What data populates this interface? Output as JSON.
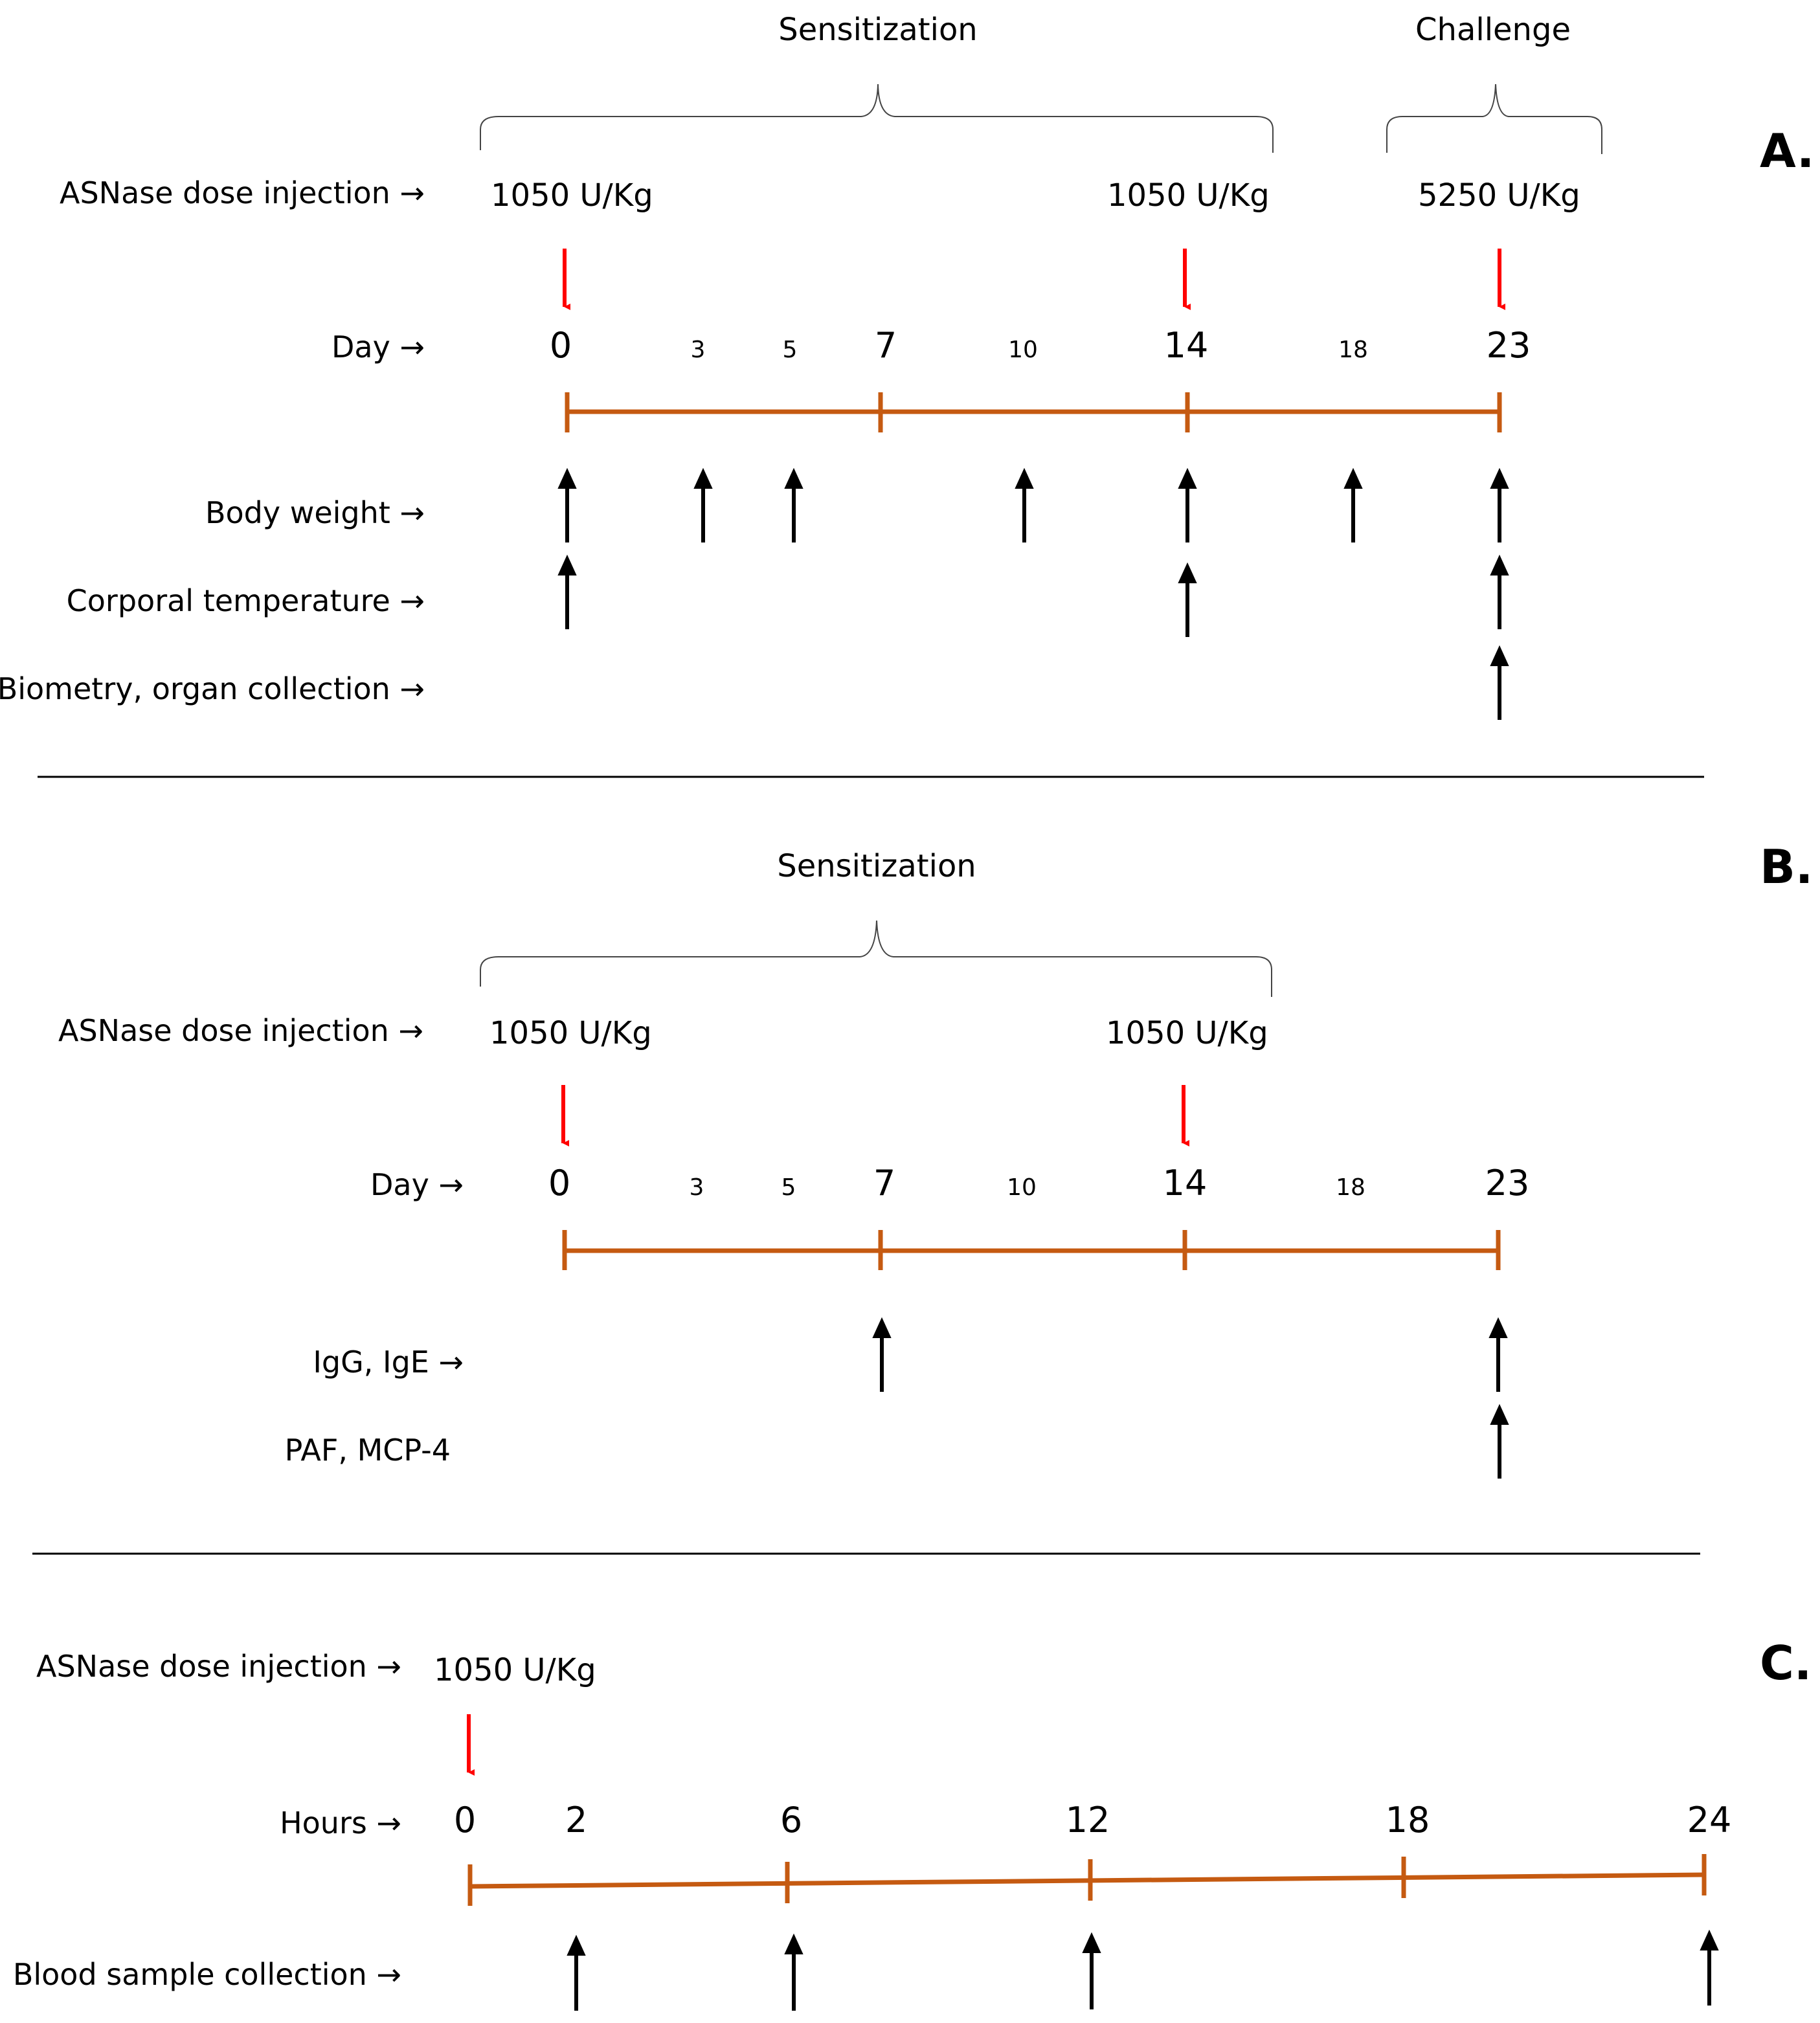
{
  "colors": {
    "timeline": "#c55a11",
    "injection_arrow": "#ff0000",
    "measurement_arrow": "#000000",
    "text": "#000000"
  },
  "panels": [
    {
      "id": "A",
      "label": "A.",
      "phases": [
        {
          "label": "Sensitization",
          "from": 0,
          "to": 16.2
        },
        {
          "label": "Challenge",
          "from": 19.2,
          "to": 26.1
        }
      ],
      "dose_row_label": "ASNase dose injection →",
      "doses": [
        {
          "day": 0,
          "label": "1050 U/Kg"
        },
        {
          "day": 14,
          "label": "1050 U/Kg"
        },
        {
          "day": 23,
          "label": "5250 U/Kg"
        }
      ],
      "axis_label": "Day →",
      "major_ticks": [
        "0",
        "7",
        "14",
        "23"
      ],
      "minor_ticks": [
        "3",
        "5",
        "10",
        "18"
      ],
      "measurements": [
        {
          "label": "Body weight →",
          "days": [
            0,
            3,
            5,
            10,
            14,
            18,
            23
          ]
        },
        {
          "label": "Corporal temperature →",
          "days": [
            0,
            14,
            23
          ]
        },
        {
          "label": "Biometry, organ collection →",
          "days": [
            23
          ]
        }
      ]
    },
    {
      "id": "B",
      "label": "B.",
      "phases": [
        {
          "label": "Sensitization",
          "from": 0,
          "to": 16.2
        }
      ],
      "dose_row_label": "ASNase dose injection →",
      "doses": [
        {
          "day": 0,
          "label": "1050 U/Kg"
        },
        {
          "day": 14,
          "label": "1050 U/Kg"
        }
      ],
      "axis_label": "Day →",
      "major_ticks": [
        "0",
        "7",
        "14",
        "23"
      ],
      "minor_ticks": [
        "3",
        "5",
        "10",
        "18"
      ],
      "measurements": [
        {
          "label": "IgG, IgE →",
          "days": [
            7,
            23
          ]
        },
        {
          "label": "PAF, MCP-4",
          "days": [
            23
          ]
        }
      ]
    },
    {
      "id": "C",
      "label": "C.",
      "dose_row_label": "ASNase dose injection →",
      "doses": [
        {
          "hour": 0,
          "label": "1050 U/Kg"
        }
      ],
      "axis_label": "Hours →",
      "ticks": [
        "0",
        "2",
        "6",
        "12",
        "18",
        "24"
      ],
      "measurements": [
        {
          "label": "Blood sample collection →",
          "hours": [
            2,
            6,
            12,
            24
          ]
        }
      ]
    }
  ]
}
